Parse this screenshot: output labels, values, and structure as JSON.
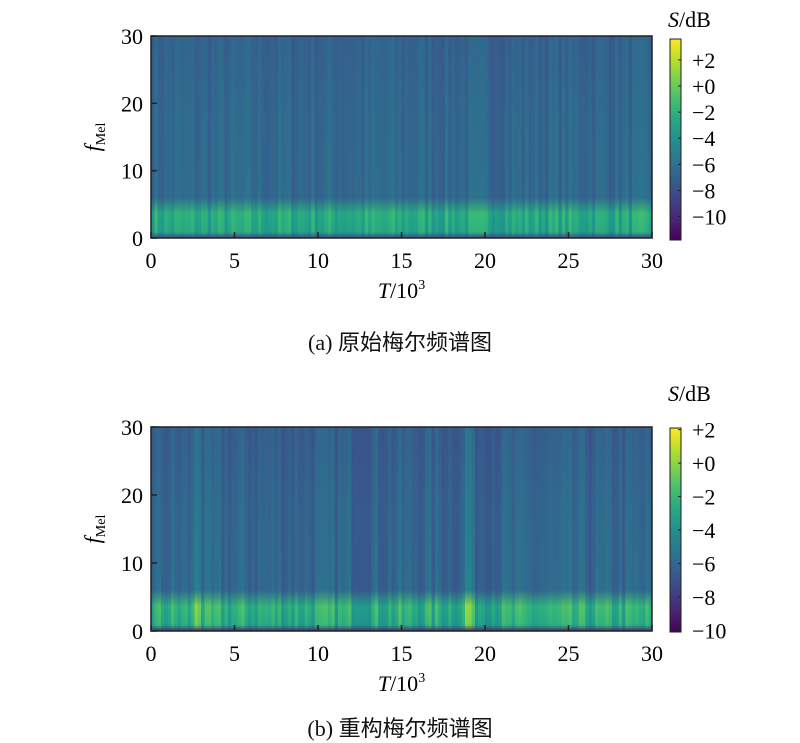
{
  "chart_data": [
    {
      "type": "heatmap",
      "caption": "(a) 原始梅尔频谱图",
      "xlabel": {
        "var": "T",
        "unit": "/10",
        "exp": "3"
      },
      "ylabel": {
        "var": "f",
        "sub": "Mel"
      },
      "xlim": [
        0,
        30
      ],
      "ylim": [
        0,
        30
      ],
      "xticks": [
        "0",
        "5",
        "10",
        "15",
        "20",
        "25",
        "30"
      ],
      "yticks": [
        "0",
        "10",
        "20",
        "30"
      ],
      "colorbar": {
        "label_var": "S",
        "label_unit": "/dB",
        "range": [
          -11.8,
          3.6
        ],
        "ticks": [
          "+2",
          "+0",
          "−2",
          "−4",
          "−6",
          "−8",
          "−10"
        ],
        "tick_values": [
          2,
          0,
          -2,
          -4,
          -6,
          -8,
          -10
        ],
        "colormap": "viridis"
      },
      "structure": {
        "n_frames": 150,
        "background_db": -7,
        "band_fmel": [
          0,
          6
        ],
        "band_peak_db": -3,
        "bright_columns_T": []
      }
    },
    {
      "type": "heatmap",
      "caption": "(b) 重构梅尔频谱图",
      "xlabel": {
        "var": "T",
        "unit": "/10",
        "exp": "3"
      },
      "ylabel": {
        "var": "f",
        "sub": "Mel"
      },
      "xlim": [
        0,
        30
      ],
      "ylim": [
        0,
        30
      ],
      "xticks": [
        "0",
        "5",
        "10",
        "15",
        "20",
        "25",
        "30"
      ],
      "yticks": [
        "0",
        "10",
        "20",
        "30"
      ],
      "colorbar": {
        "label_var": "S",
        "label_unit": "/dB",
        "range": [
          -10.1,
          2.1
        ],
        "ticks": [
          "+2",
          "+0",
          "−2",
          "−4",
          "−6",
          "−8",
          "−10"
        ],
        "tick_values": [
          2,
          0,
          -2,
          -4,
          -6,
          -8,
          -10
        ],
        "colormap": "viridis"
      },
      "structure": {
        "n_frames": 150,
        "background_db": -6.5,
        "band_fmel": [
          0,
          6
        ],
        "band_peak_db": -3,
        "bright_columns_T": [
          2.8,
          19
        ]
      }
    }
  ]
}
